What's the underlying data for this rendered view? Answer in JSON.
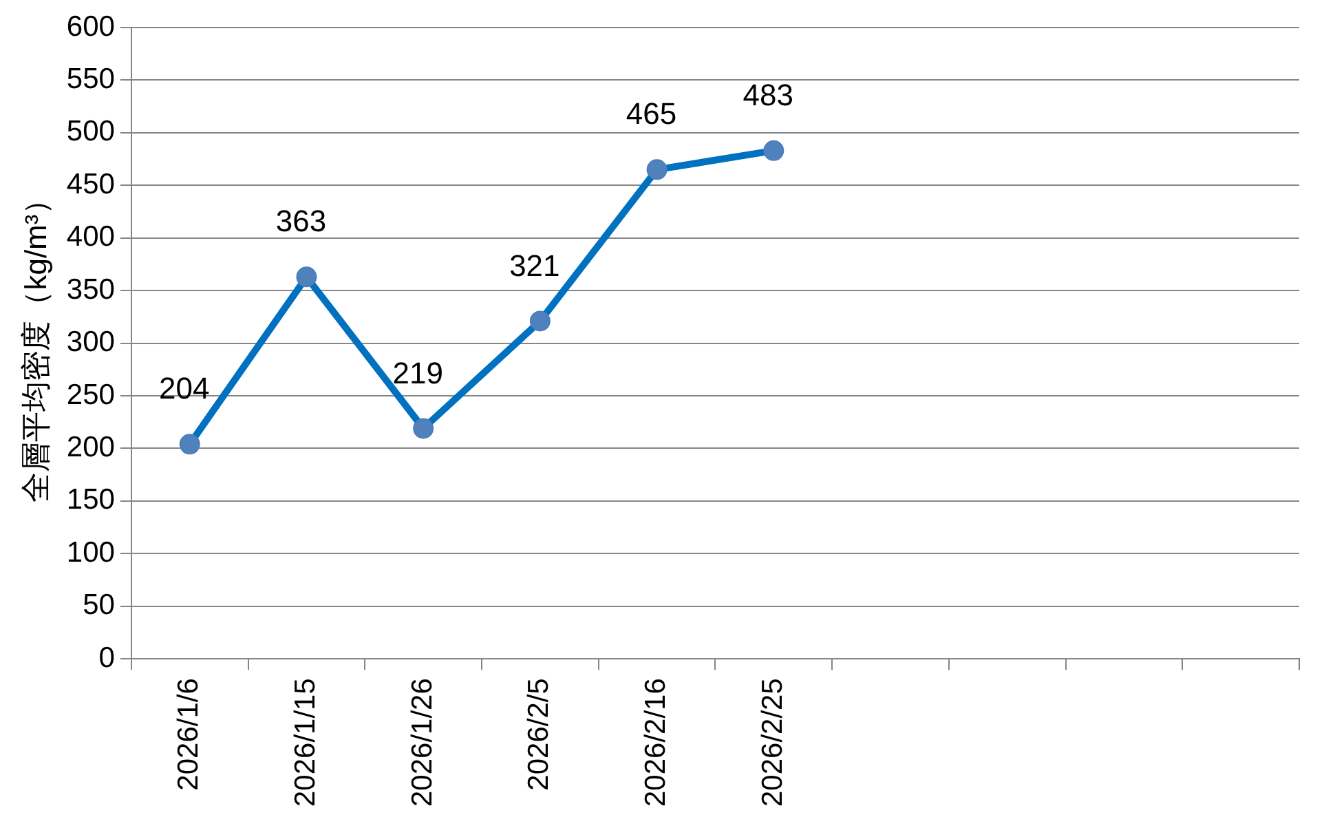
{
  "chart_data": {
    "type": "line",
    "ylabel": "全層平均密度（kg/m³）",
    "categories": [
      "2026/1/6",
      "2026/1/15",
      "2026/1/26",
      "2026/2/5",
      "2026/2/16",
      "2026/2/25",
      null,
      null,
      null,
      null
    ],
    "series": [
      {
        "color": "#0070c0",
        "values": [
          204,
          363,
          219,
          321,
          465,
          483,
          null,
          null,
          null,
          null
        ]
      }
    ],
    "ylim": [
      0,
      600
    ],
    "yticks": [
      0,
      50,
      100,
      150,
      200,
      250,
      300,
      350,
      400,
      450,
      500,
      550,
      600
    ],
    "grid": "y",
    "legend": false,
    "marker": "circle",
    "line_style": "solid",
    "data_labels": true
  }
}
